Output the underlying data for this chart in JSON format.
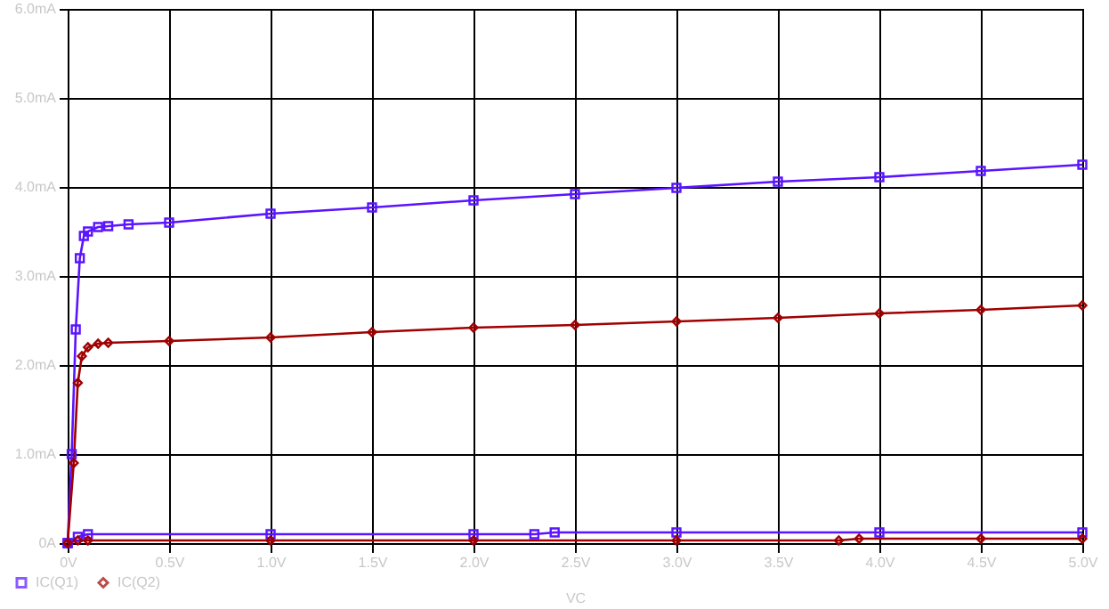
{
  "chart_data": {
    "type": "line",
    "xlabel": "VC",
    "legend": "bottom left",
    "grid": true,
    "line_style": "solid",
    "xlim": [
      0,
      5
    ],
    "ylim": [
      0,
      6
    ],
    "xticks": [
      {
        "value": 0,
        "label": "0V"
      },
      {
        "value": 0.5,
        "label": "0.5V"
      },
      {
        "value": 1,
        "label": "1.0V"
      },
      {
        "value": 1.5,
        "label": "1.5V"
      },
      {
        "value": 2,
        "label": "2.0V"
      },
      {
        "value": 2.5,
        "label": "2.5V"
      },
      {
        "value": 3,
        "label": "3.0V"
      },
      {
        "value": 3.5,
        "label": "3.5V"
      },
      {
        "value": 4,
        "label": "4.0V"
      },
      {
        "value": 4.5,
        "label": "4.5V"
      },
      {
        "value": 5,
        "label": "5.0V"
      }
    ],
    "yticks": [
      {
        "value": 0,
        "label": "0A"
      },
      {
        "value": 1,
        "label": "1.0mA"
      },
      {
        "value": 2,
        "label": "2.0mA"
      },
      {
        "value": 3,
        "label": "3.0mA"
      },
      {
        "value": 4,
        "label": "4.0mA"
      },
      {
        "value": 5,
        "label": "5.0mA"
      },
      {
        "value": 6,
        "label": "6.0mA"
      }
    ],
    "series": [
      {
        "name": "IC(Q1)",
        "color": "#5a14ff",
        "marker": "square",
        "x": [
          0,
          0.02,
          0.04,
          0.06,
          0.08,
          0.1,
          0.15,
          0.2,
          0.3,
          0.5,
          1,
          1.5,
          2,
          2.5,
          3,
          3.5,
          4,
          4.5,
          5
        ],
        "values": [
          0,
          1.0,
          2.4,
          3.2,
          3.45,
          3.5,
          3.55,
          3.56,
          3.58,
          3.6,
          3.7,
          3.77,
          3.85,
          3.92,
          3.99,
          4.06,
          4.11,
          4.18,
          4.25
        ]
      },
      {
        "name": "IC(Q2)",
        "color": "#a00000",
        "marker": "diamond",
        "x": [
          0,
          0.03,
          0.05,
          0.07,
          0.1,
          0.15,
          0.2,
          0.5,
          1,
          1.5,
          2,
          2.5,
          3,
          3.5,
          4,
          4.5,
          5
        ],
        "values": [
          0,
          0.9,
          1.8,
          2.1,
          2.2,
          2.24,
          2.25,
          2.27,
          2.31,
          2.37,
          2.42,
          2.45,
          2.49,
          2.53,
          2.58,
          2.62,
          2.67
        ]
      },
      {
        "color": "#5a14ff",
        "marker": "square",
        "x": [
          0,
          0.05,
          0.1,
          1,
          2,
          2.3,
          2.4,
          3,
          4,
          5
        ],
        "values": [
          0,
          0.07,
          0.1,
          0.1,
          0.1,
          0.1,
          0.12,
          0.12,
          0.12,
          0.12
        ]
      },
      {
        "color": "#a00000",
        "marker": "diamond",
        "x": [
          0,
          0.05,
          0.1,
          1,
          2,
          3,
          3.8,
          3.9,
          4.5,
          5
        ],
        "values": [
          0,
          0.03,
          0.03,
          0.03,
          0.03,
          0.03,
          0.03,
          0.05,
          0.05,
          0.05
        ]
      }
    ]
  }
}
